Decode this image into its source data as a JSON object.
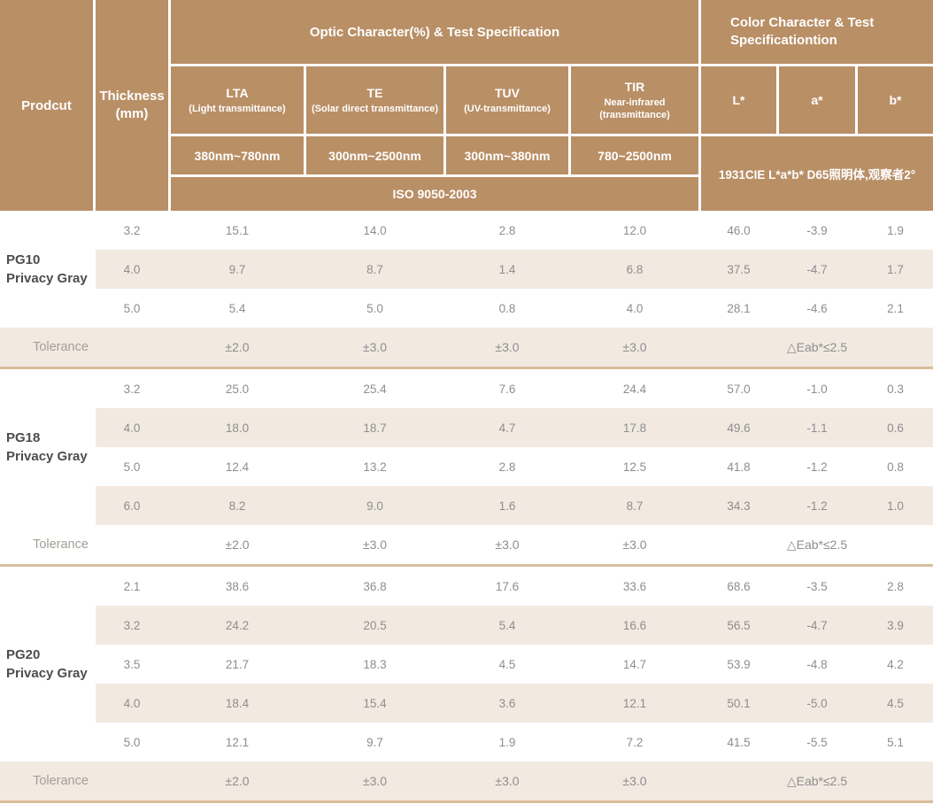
{
  "colors": {
    "header_bg": "#b98f66",
    "row_shade": "#f2e9e1",
    "separator_line": "#d9bd9b",
    "header_text": "#ffffff",
    "value_text": "#8e8e8e",
    "product_text": "#4d4d4d",
    "tolerance_text": "#a49e96"
  },
  "table": {
    "header": {
      "product": "Prodcut",
      "thickness": "Thickness\n(mm)",
      "optic_group": "Optic Character(%) & Test Specification",
      "color_group": "Color Character & Test Specificationtion",
      "columns": [
        {
          "name": "LTA",
          "sub": "(Light transmittance)",
          "range": "380nm~780nm"
        },
        {
          "name": "TE",
          "sub": "(Solar direct transmittance)",
          "range": "300nm~2500nm"
        },
        {
          "name": "TUV",
          "sub": "(UV-transmittance)",
          "range": "300nm~380nm"
        },
        {
          "name": "TIR",
          "sub": "Near-infrared (transmittance)",
          "range": "780~2500nm"
        }
      ],
      "lab_columns": [
        "L*",
        "a*",
        "b*"
      ],
      "iso": "ISO 9050-2003",
      "cie": "1931CIE L*a*b*  D65照明体,观察者2°"
    },
    "sections": [
      {
        "product": "PG10\nPrivacy Gray",
        "rows": [
          [
            "3.2",
            "15.1",
            "14.0",
            "2.8",
            "12.0",
            "46.0",
            "-3.9",
            "1.9"
          ],
          [
            "4.0",
            "9.7",
            "8.7",
            "1.4",
            "6.8",
            "37.5",
            "-4.7",
            "1.7"
          ],
          [
            "5.0",
            "5.4",
            "5.0",
            "0.8",
            "4.0",
            "28.1",
            "-4.6",
            "2.1"
          ]
        ],
        "tolerance": {
          "label": "Tolerance",
          "values": [
            "±2.0",
            "±3.0",
            "±3.0",
            "±3.0"
          ],
          "lab": "△Eab*≤2.5"
        }
      },
      {
        "product": "PG18\nPrivacy Gray",
        "rows": [
          [
            "3.2",
            "25.0",
            "25.4",
            "7.6",
            "24.4",
            "57.0",
            "-1.0",
            "0.3"
          ],
          [
            "4.0",
            "18.0",
            "18.7",
            "4.7",
            "17.8",
            "49.6",
            "-1.1",
            "0.6"
          ],
          [
            "5.0",
            "12.4",
            "13.2",
            "2.8",
            "12.5",
            "41.8",
            "-1.2",
            "0.8"
          ],
          [
            "6.0",
            "8.2",
            "9.0",
            "1.6",
            "8.7",
            "34.3",
            "-1.2",
            "1.0"
          ]
        ],
        "tolerance": {
          "label": "Tolerance",
          "values": [
            "±2.0",
            "±3.0",
            "±3.0",
            "±3.0"
          ],
          "lab": "△Eab*≤2.5"
        }
      },
      {
        "product": "PG20\nPrivacy Gray",
        "rows": [
          [
            "2.1",
            "38.6",
            "36.8",
            "17.6",
            "33.6",
            "68.6",
            "-3.5",
            "2.8"
          ],
          [
            "3.2",
            "24.2",
            "20.5",
            "5.4",
            "16.6",
            "56.5",
            "-4.7",
            "3.9"
          ],
          [
            "3.5",
            "21.7",
            "18.3",
            "4.5",
            "14.7",
            "53.9",
            "-4.8",
            "4.2"
          ],
          [
            "4.0",
            "18.4",
            "15.4",
            "3.6",
            "12.1",
            "50.1",
            "-5.0",
            "4.5"
          ],
          [
            "5.0",
            "12.1",
            "9.7",
            "1.9",
            "7.2",
            "41.5",
            "-5.5",
            "5.1"
          ]
        ],
        "tolerance": {
          "label": "Tolerance",
          "values": [
            "±2.0",
            "±3.0",
            "±3.0",
            "±3.0"
          ],
          "lab": "△Eab*≤2.5"
        }
      }
    ]
  }
}
